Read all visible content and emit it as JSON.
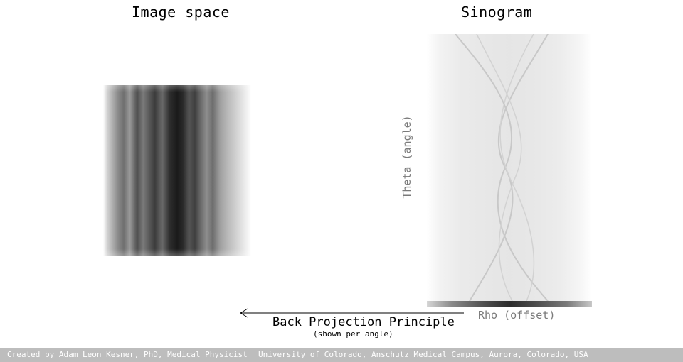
{
  "titles": {
    "image_space": "Image space",
    "sinogram": "Sinogram"
  },
  "axes": {
    "theta": "Theta (angle)",
    "rho": "Rho (offset)"
  },
  "caption": {
    "main": "Back Projection Principle",
    "sub": "(shown per angle)"
  },
  "footer": {
    "credit": "Created by Adam Leon Kesner, PhD, Medical Physicist",
    "affiliation": "University of Colorado, Anschutz Medical Campus, Aurora, Colorado, USA"
  }
}
